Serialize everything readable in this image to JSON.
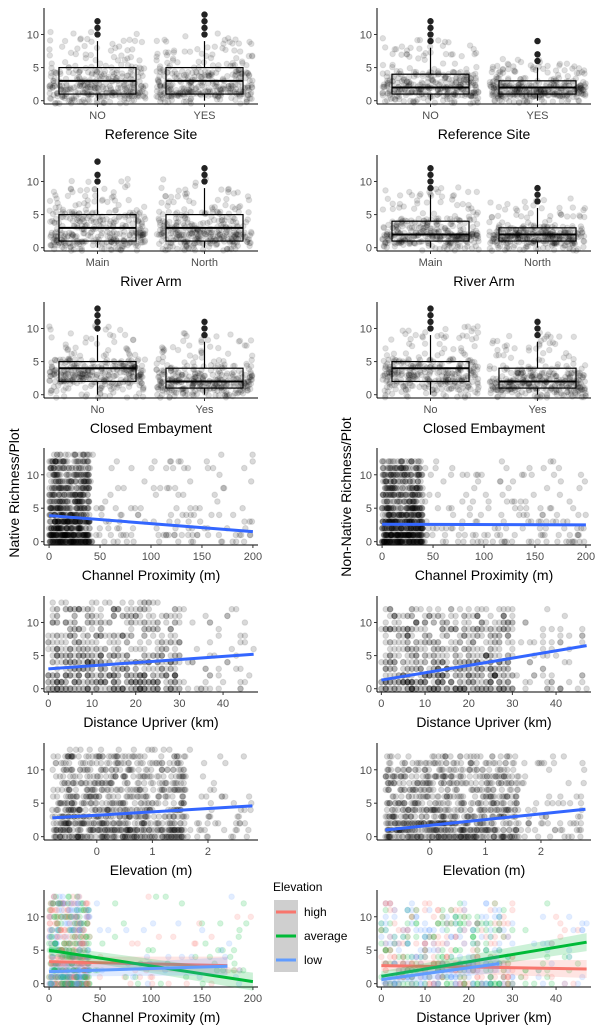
{
  "y_labels": {
    "left": "Native Richness/Plot",
    "right": "Non-Native Richness/Plot"
  },
  "legend": {
    "title": "Elevation",
    "items": [
      {
        "label": "high",
        "color": "#F8766D"
      },
      {
        "label": "average",
        "color": "#00BA38"
      },
      {
        "label": "low",
        "color": "#619CFF"
      }
    ]
  },
  "chart_data": [
    {
      "type": "box",
      "xlabel": "Reference Site",
      "categories": [
        "NO",
        "YES"
      ],
      "ylim": [
        -0.5,
        14
      ],
      "yticks": [
        0,
        5,
        10
      ],
      "box_stats": [
        [
          0,
          1,
          3,
          5,
          9
        ],
        [
          0,
          1,
          3,
          5,
          9
        ]
      ],
      "outliers": [
        [
          10,
          11,
          12
        ],
        [
          10,
          11,
          12,
          13
        ]
      ]
    },
    {
      "type": "box",
      "xlabel": "Reference Site",
      "categories": [
        "NO",
        "YES"
      ],
      "ylim": [
        -0.5,
        14
      ],
      "yticks": [
        0,
        5,
        10
      ],
      "box_stats": [
        [
          0,
          1,
          2,
          4,
          8
        ],
        [
          0,
          1,
          2,
          3,
          5
        ]
      ],
      "outliers": [
        [
          9,
          10,
          11,
          12
        ],
        [
          6,
          7,
          9
        ]
      ]
    },
    {
      "type": "box",
      "xlabel": "River Arm",
      "categories": [
        "Main",
        "North"
      ],
      "ylim": [
        -0.5,
        14
      ],
      "yticks": [
        0,
        5,
        10
      ],
      "box_stats": [
        [
          0,
          1,
          3,
          5,
          9
        ],
        [
          0,
          1,
          3,
          5,
          9
        ]
      ],
      "outliers": [
        [
          10,
          11,
          13
        ],
        [
          10,
          11,
          12
        ]
      ]
    },
    {
      "type": "box",
      "xlabel": "River Arm",
      "categories": [
        "Main",
        "North"
      ],
      "ylim": [
        -0.5,
        14
      ],
      "yticks": [
        0,
        5,
        10
      ],
      "box_stats": [
        [
          0,
          1,
          2,
          4,
          8
        ],
        [
          0,
          1,
          2,
          3,
          6
        ]
      ],
      "outliers": [
        [
          9,
          10,
          11,
          12
        ],
        [
          7,
          8,
          9
        ]
      ]
    },
    {
      "type": "box",
      "xlabel": "Closed Embayment",
      "categories": [
        "No",
        "Yes"
      ],
      "ylim": [
        -0.5,
        14
      ],
      "yticks": [
        0,
        5,
        10
      ],
      "box_stats": [
        [
          0,
          2,
          4,
          5,
          9
        ],
        [
          0,
          1,
          2,
          4,
          8
        ]
      ],
      "outliers": [
        [
          10,
          11,
          12,
          13
        ],
        [
          9,
          10,
          11
        ]
      ]
    },
    {
      "type": "box",
      "xlabel": "Closed Embayment",
      "categories": [
        "No",
        "Yes"
      ],
      "ylim": [
        -0.5,
        14
      ],
      "yticks": [
        0,
        5,
        10
      ],
      "box_stats": [
        [
          0,
          2,
          4,
          5,
          9
        ],
        [
          0,
          1,
          2,
          4,
          8
        ]
      ],
      "outliers": [
        [
          10,
          11,
          12,
          13
        ],
        [
          9,
          10,
          11
        ]
      ]
    },
    {
      "type": "scatter",
      "xlabel": "Channel Proximity (m)",
      "xlim": [
        -5,
        205
      ],
      "xticks": [
        0,
        50,
        100,
        150,
        200
      ],
      "ylim": [
        -0.5,
        14
      ],
      "yticks": [
        0,
        5,
        10
      ],
      "point_range": {
        "x": [
          0,
          200
        ],
        "y": [
          0,
          13
        ],
        "n": 900,
        "dense_x_max": 40
      },
      "trend": [
        {
          "x": [
            0,
            200
          ],
          "y": [
            3.9,
            1.5
          ],
          "color": "#3366FF"
        }
      ]
    },
    {
      "type": "scatter",
      "xlabel": "Channel Proximity (m)",
      "xlim": [
        -5,
        205
      ],
      "xticks": [
        0,
        50,
        100,
        150,
        200
      ],
      "ylim": [
        -0.5,
        14
      ],
      "yticks": [
        0,
        5,
        10
      ],
      "point_range": {
        "x": [
          0,
          200
        ],
        "y": [
          0,
          12
        ],
        "n": 900,
        "dense_x_max": 40
      },
      "trend": [
        {
          "x": [
            0,
            200
          ],
          "y": [
            2.6,
            2.5
          ],
          "color": "#3366FF"
        }
      ]
    },
    {
      "type": "scatter",
      "xlabel": "Distance Upriver (km)",
      "xlim": [
        -1,
        48
      ],
      "xticks": [
        0,
        10,
        20,
        30,
        40
      ],
      "ylim": [
        -0.5,
        14
      ],
      "yticks": [
        0,
        5,
        10
      ],
      "point_range": {
        "x": [
          0,
          47
        ],
        "y": [
          0,
          13
        ],
        "n": 700,
        "dense_x_max": 30
      },
      "trend": [
        {
          "x": [
            0,
            47
          ],
          "y": [
            3.0,
            5.2
          ],
          "color": "#3366FF"
        }
      ]
    },
    {
      "type": "scatter",
      "xlabel": "Distance Upriver (km)",
      "xlim": [
        -1,
        48
      ],
      "xticks": [
        0,
        10,
        20,
        30,
        40
      ],
      "ylim": [
        -0.5,
        14
      ],
      "yticks": [
        0,
        5,
        10
      ],
      "point_range": {
        "x": [
          0,
          47
        ],
        "y": [
          0,
          12
        ],
        "n": 700,
        "dense_x_max": 30
      },
      "trend": [
        {
          "x": [
            0,
            47
          ],
          "y": [
            1.3,
            6.5
          ],
          "color": "#3366FF"
        }
      ]
    },
    {
      "type": "scatter",
      "xlabel": "Elevation (m)",
      "xlim": [
        -0.95,
        2.9
      ],
      "xticks": [
        0,
        1,
        2
      ],
      "ylim": [
        -0.5,
        14
      ],
      "yticks": [
        0,
        5,
        10
      ],
      "point_range": {
        "x": [
          -0.8,
          2.8
        ],
        "y": [
          0,
          13
        ],
        "n": 900,
        "dense_x_max": 1.6
      },
      "trend": [
        {
          "x": [
            -0.8,
            2.8
          ],
          "y": [
            2.8,
            4.6
          ],
          "color": "#3366FF"
        }
      ]
    },
    {
      "type": "scatter",
      "xlabel": "Elevation (m)",
      "xlim": [
        -0.95,
        2.9
      ],
      "xticks": [
        0,
        1,
        2
      ],
      "ylim": [
        -0.5,
        14
      ],
      "yticks": [
        0,
        5,
        10
      ],
      "point_range": {
        "x": [
          -0.8,
          2.8
        ],
        "y": [
          0,
          12
        ],
        "n": 900,
        "dense_x_max": 1.6
      },
      "trend": [
        {
          "x": [
            -0.8,
            2.8
          ],
          "y": [
            1.0,
            4.1
          ],
          "color": "#3366FF"
        }
      ]
    },
    {
      "type": "scatter",
      "xlabel": "Channel Proximity (m)",
      "xlim": [
        -5,
        205
      ],
      "xticks": [
        0,
        50,
        100,
        150,
        200
      ],
      "ylim": [
        -0.5,
        14
      ],
      "yticks": [
        0,
        5,
        10
      ],
      "colored": true,
      "point_range": {
        "x": [
          0,
          200
        ],
        "y": [
          0,
          13
        ],
        "n": 700,
        "dense_x_max": 40
      },
      "trend": [
        {
          "x": [
            0,
            175
          ],
          "y": [
            3.3,
            2.7
          ],
          "color": "#F8766D"
        },
        {
          "x": [
            0,
            200
          ],
          "y": [
            5.0,
            0.3
          ],
          "color": "#00BA38"
        },
        {
          "x": [
            0,
            175
          ],
          "y": [
            1.8,
            2.6
          ],
          "color": "#619CFF"
        }
      ]
    },
    {
      "type": "scatter",
      "xlabel": "Distance Upriver (km)",
      "xlim": [
        -1,
        48
      ],
      "xticks": [
        0,
        10,
        20,
        30,
        40
      ],
      "ylim": [
        -0.5,
        14
      ],
      "yticks": [
        0,
        5,
        10
      ],
      "colored": true,
      "point_range": {
        "x": [
          0,
          47
        ],
        "y": [
          0,
          12
        ],
        "n": 600,
        "dense_x_max": 30
      },
      "trend": [
        {
          "x": [
            0,
            47
          ],
          "y": [
            2.7,
            2.2
          ],
          "color": "#F8766D"
        },
        {
          "x": [
            0,
            47
          ],
          "y": [
            1.1,
            6.2
          ],
          "color": "#00BA38"
        },
        {
          "x": [
            0,
            27
          ],
          "y": [
            0.6,
            3.0
          ],
          "color": "#619CFF"
        }
      ]
    }
  ]
}
